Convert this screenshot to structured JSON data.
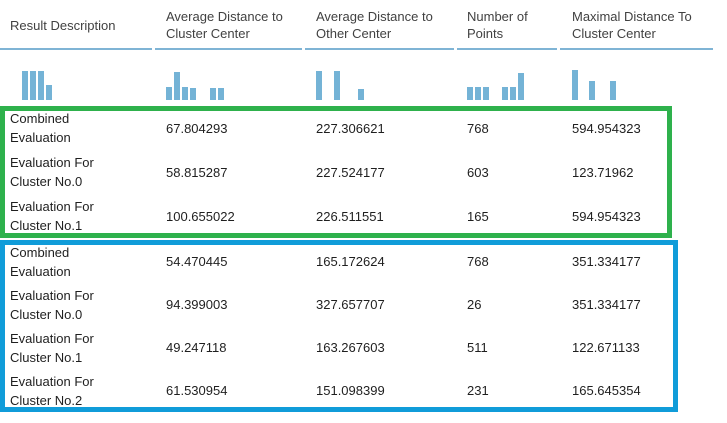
{
  "colors": {
    "bg": "#ffffff",
    "spark_bar": "#74b3d6",
    "header_rule": "#7fb4d5",
    "header_text": "#414141",
    "body_text": "#1f1f1f",
    "group_green": "#2eb14c",
    "group_blue": "#109cd9"
  },
  "table": {
    "columns": [
      "Result Description",
      "Average Distance to Cluster Center",
      "Average Distance to Other Center",
      "Number of Points",
      "Maximal Distance To Cluster Center"
    ]
  },
  "sparklines": {
    "result_description": [
      [
        29,
        0
      ],
      [
        29,
        2
      ],
      [
        29,
        2
      ],
      [
        15,
        2
      ]
    ],
    "avg_dist_cluster_center": [
      [
        13,
        0
      ],
      [
        28,
        2
      ],
      [
        13,
        2
      ],
      [
        12,
        2
      ],
      [
        12,
        14
      ],
      [
        12,
        2
      ]
    ],
    "avg_dist_other_center": [
      [
        29,
        0
      ],
      [
        29,
        12
      ],
      [
        11,
        18
      ]
    ],
    "number_of_points": [
      [
        13,
        0
      ],
      [
        13,
        2
      ],
      [
        13,
        2
      ],
      [
        13,
        13
      ],
      [
        13,
        2
      ],
      [
        27,
        2
      ]
    ],
    "max_dist_cluster_center": [
      [
        30,
        0
      ],
      [
        19,
        11
      ],
      [
        19,
        15
      ]
    ]
  },
  "groups": [
    {
      "name": "evaluation-group-1",
      "highlight_color": "#2eb14c",
      "rows": [
        {
          "cells": [
            "Combined Evaluation",
            "67.804293",
            "227.306621",
            "768",
            "594.954323"
          ]
        },
        {
          "cells": [
            "Evaluation For Cluster No.0",
            "58.815287",
            "227.524177",
            "603",
            "123.71962"
          ]
        },
        {
          "cells": [
            "Evaluation For Cluster No.1",
            "100.655022",
            "226.511551",
            "165",
            "594.954323"
          ]
        }
      ]
    },
    {
      "name": "evaluation-group-2",
      "highlight_color": "#109cd9",
      "rows": [
        {
          "cells": [
            "Combined Evaluation",
            "54.470445",
            "165.172624",
            "768",
            "351.334177"
          ]
        },
        {
          "cells": [
            "Evaluation For Cluster No.0",
            "94.399003",
            "327.657707",
            "26",
            "351.334177"
          ]
        },
        {
          "cells": [
            "Evaluation For Cluster No.1",
            "49.247118",
            "163.267603",
            "511",
            "122.671133"
          ]
        },
        {
          "cells": [
            "Evaluation For Cluster No.2",
            "61.530954",
            "151.098399",
            "231",
            "165.645354"
          ]
        }
      ]
    }
  ]
}
